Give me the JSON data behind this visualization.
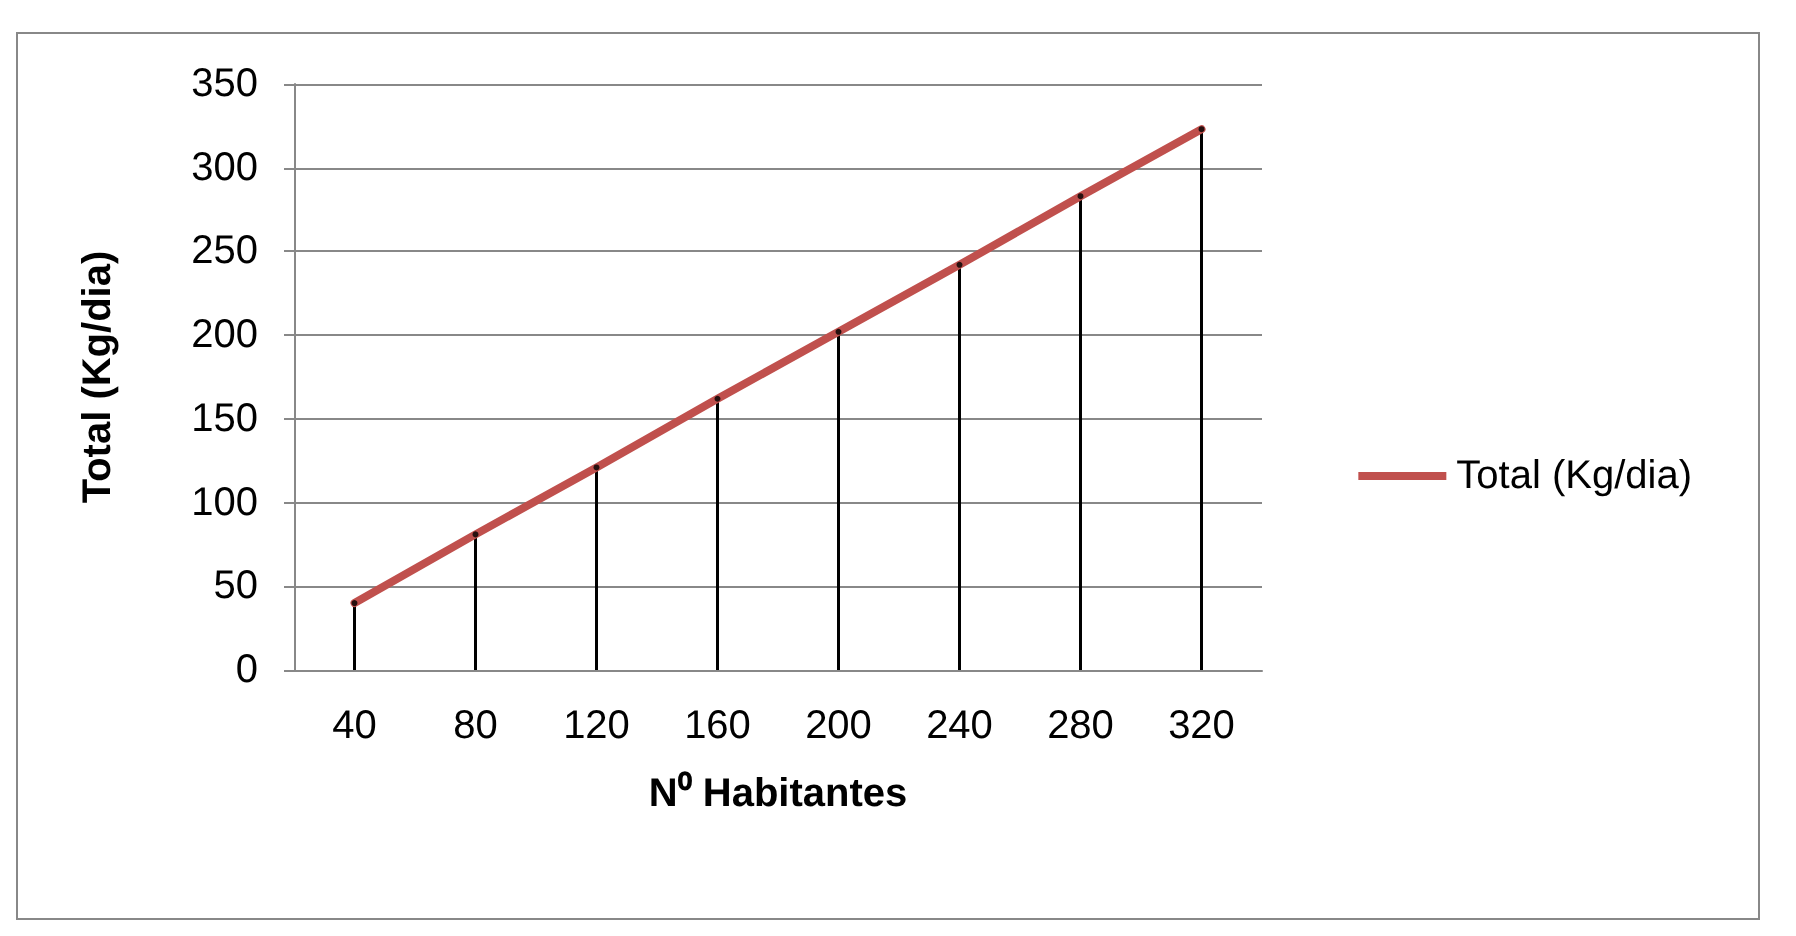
{
  "chart_data": {
    "type": "line",
    "xlabel": "N⁰ Habitantes",
    "ylabel": "Total (Kg/dia)",
    "categories": [
      "40",
      "80",
      "120",
      "160",
      "200",
      "240",
      "280",
      "320"
    ],
    "series": [
      {
        "name": "Total (Kg/dia)",
        "color": "#c0504d",
        "marker": "none",
        "values": [
          40,
          81,
          121,
          162,
          202,
          242,
          283,
          323
        ]
      },
      {
        "type": "lollipop",
        "color": "#000000",
        "marker": "none",
        "values": [
          40,
          81,
          121,
          162,
          202,
          242,
          283,
          323
        ]
      }
    ],
    "ylim": [
      0,
      350
    ],
    "yticks": [
      0,
      50,
      100,
      150,
      200,
      250,
      300,
      350
    ],
    "grid": "y",
    "legend": "right"
  }
}
